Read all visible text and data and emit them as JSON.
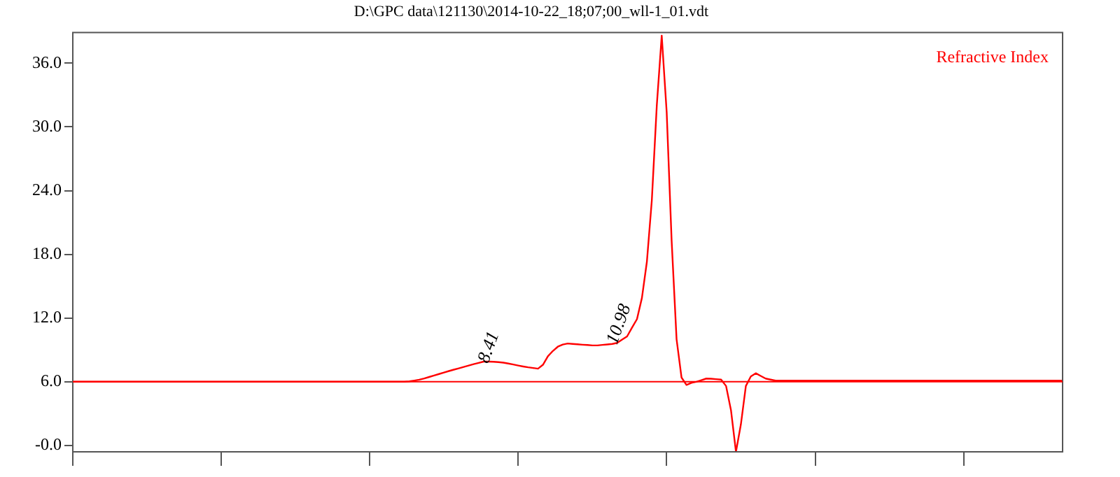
{
  "chart_data": {
    "type": "line",
    "title": "D:\\GPC data\\121130\\2014-10-22_18;07;00_wll-1_01.vdt",
    "categories": [
      null,
      null,
      null,
      null,
      null,
      null,
      null,
      null,
      null,
      null,
      null,
      null,
      null,
      null,
      null,
      null,
      null,
      null,
      null,
      null,
      null,
      null,
      null,
      null,
      null,
      null,
      null,
      null,
      null,
      null,
      null,
      null,
      null,
      null,
      null,
      null,
      null,
      null,
      null,
      null,
      null,
      null,
      null,
      null,
      null,
      null,
      null,
      null,
      null,
      null,
      null,
      null,
      null,
      null,
      null,
      null,
      null,
      null,
      null,
      null,
      null,
      null,
      null,
      null,
      null,
      null,
      null,
      null,
      null,
      null,
      null,
      null,
      null,
      null,
      null,
      null,
      null,
      null,
      null,
      null,
      null,
      null,
      null,
      null,
      null,
      null,
      null,
      null,
      null,
      null,
      null,
      null,
      null,
      null,
      null,
      null,
      null,
      null,
      null,
      null,
      null,
      null,
      null,
      null,
      null,
      null,
      null,
      null,
      null,
      null,
      null,
      null,
      null,
      null,
      null,
      null,
      null,
      null,
      null,
      null,
      null,
      null,
      null,
      null,
      null,
      null,
      null,
      null,
      null,
      null,
      null,
      null,
      null,
      null,
      null,
      null,
      null,
      null,
      null,
      null,
      null,
      null,
      null,
      null,
      null,
      null,
      null,
      null,
      null,
      null,
      null,
      null,
      null,
      null,
      null,
      null,
      null,
      null,
      null,
      null,
      null,
      null,
      null,
      null,
      null,
      null,
      null,
      null,
      null,
      null,
      null,
      null,
      null,
      null,
      null,
      null,
      null,
      null,
      null,
      null,
      null,
      null,
      null,
      null,
      null,
      null,
      null,
      null,
      null,
      null,
      null,
      null,
      null,
      null,
      null,
      null,
      null,
      null,
      null,
      null,
      null
    ],
    "ylim": [
      -0.6,
      38.9
    ],
    "yticks": [
      {
        "value": 0,
        "label": "-0.0"
      },
      {
        "value": 6,
        "label": "6.0"
      },
      {
        "value": 12,
        "label": "12.0"
      },
      {
        "value": 18,
        "label": "18.0"
      },
      {
        "value": 24,
        "label": "24.0"
      },
      {
        "value": 30,
        "label": "30.0"
      },
      {
        "value": 36,
        "label": "36.0"
      }
    ],
    "tick_labels": "y",
    "grid": false,
    "marker": "none",
    "line_style": "solid",
    "series": [
      {
        "name": "Refractive Index",
        "color": "#ff0000",
        "values": [
          6.0,
          6.0,
          6.0,
          6.0,
          6.0,
          6.0,
          6.0,
          6.0,
          6.0,
          6.0,
          6.0,
          6.0,
          6.0,
          6.0,
          6.0,
          6.0,
          6.0,
          6.0,
          6.0,
          6.0,
          6.0,
          6.0,
          6.0,
          6.0,
          6.0,
          6.0,
          6.0,
          6.0,
          6.0,
          6.0,
          6.0,
          6.0,
          6.0,
          6.0,
          6.0,
          6.0,
          6.0,
          6.0,
          6.0,
          6.0,
          6.0,
          6.0,
          6.0,
          6.0,
          6.0,
          6.0,
          6.0,
          6.0,
          6.0,
          6.0,
          6.0,
          6.0,
          6.0,
          6.0,
          6.0,
          6.0,
          6.0,
          6.0,
          6.0,
          6.0,
          6.0,
          6.0,
          6.0,
          6.0,
          6.0,
          6.0,
          6.0,
          6.0,
          6.04,
          6.11,
          6.19,
          6.31,
          6.45,
          6.59,
          6.73,
          6.87,
          7.01,
          7.14,
          7.27,
          7.4,
          7.53,
          7.66,
          7.78,
          7.9,
          7.9,
          7.88,
          7.85,
          7.8,
          7.72,
          7.63,
          7.53,
          7.44,
          7.36,
          7.3,
          7.23,
          7.6,
          8.4,
          8.9,
          9.3,
          9.5,
          9.6,
          9.56,
          9.53,
          9.49,
          9.46,
          9.42,
          9.42,
          9.47,
          9.51,
          9.56,
          9.66,
          9.97,
          10.27,
          11.1,
          11.9,
          13.9,
          17.3,
          23.1,
          32.0,
          38.6,
          31.4,
          19.3,
          10.0,
          6.4,
          5.7,
          5.9,
          6.0,
          6.15,
          6.3,
          6.28,
          6.24,
          6.2,
          5.6,
          3.3,
          -0.6,
          2.0,
          5.6,
          6.5,
          6.8,
          6.55,
          6.3,
          6.2,
          6.1,
          6.1,
          6.1,
          6.1,
          6.1,
          6.1,
          6.1,
          6.1,
          6.1,
          6.1,
          6.1,
          6.1,
          6.1,
          6.1,
          6.1,
          6.1,
          6.1,
          6.1,
          6.1,
          6.1,
          6.1,
          6.1,
          6.1,
          6.1,
          6.1,
          6.1,
          6.1,
          6.1,
          6.1,
          6.1,
          6.1,
          6.1,
          6.1,
          6.1,
          6.1,
          6.1,
          6.1,
          6.1,
          6.1,
          6.1,
          6.1,
          6.1,
          6.1,
          6.1,
          6.1,
          6.1,
          6.1,
          6.1,
          6.1,
          6.1,
          6.1,
          6.1,
          6.1,
          6.1,
          6.1,
          6.1,
          6.1,
          6.1,
          6.1
        ]
      }
    ],
    "ref_lines": [
      {
        "axis": "y",
        "value": 6,
        "color": "#ff0000"
      }
    ],
    "annotations": [
      "8.41",
      "10.98"
    ]
  }
}
